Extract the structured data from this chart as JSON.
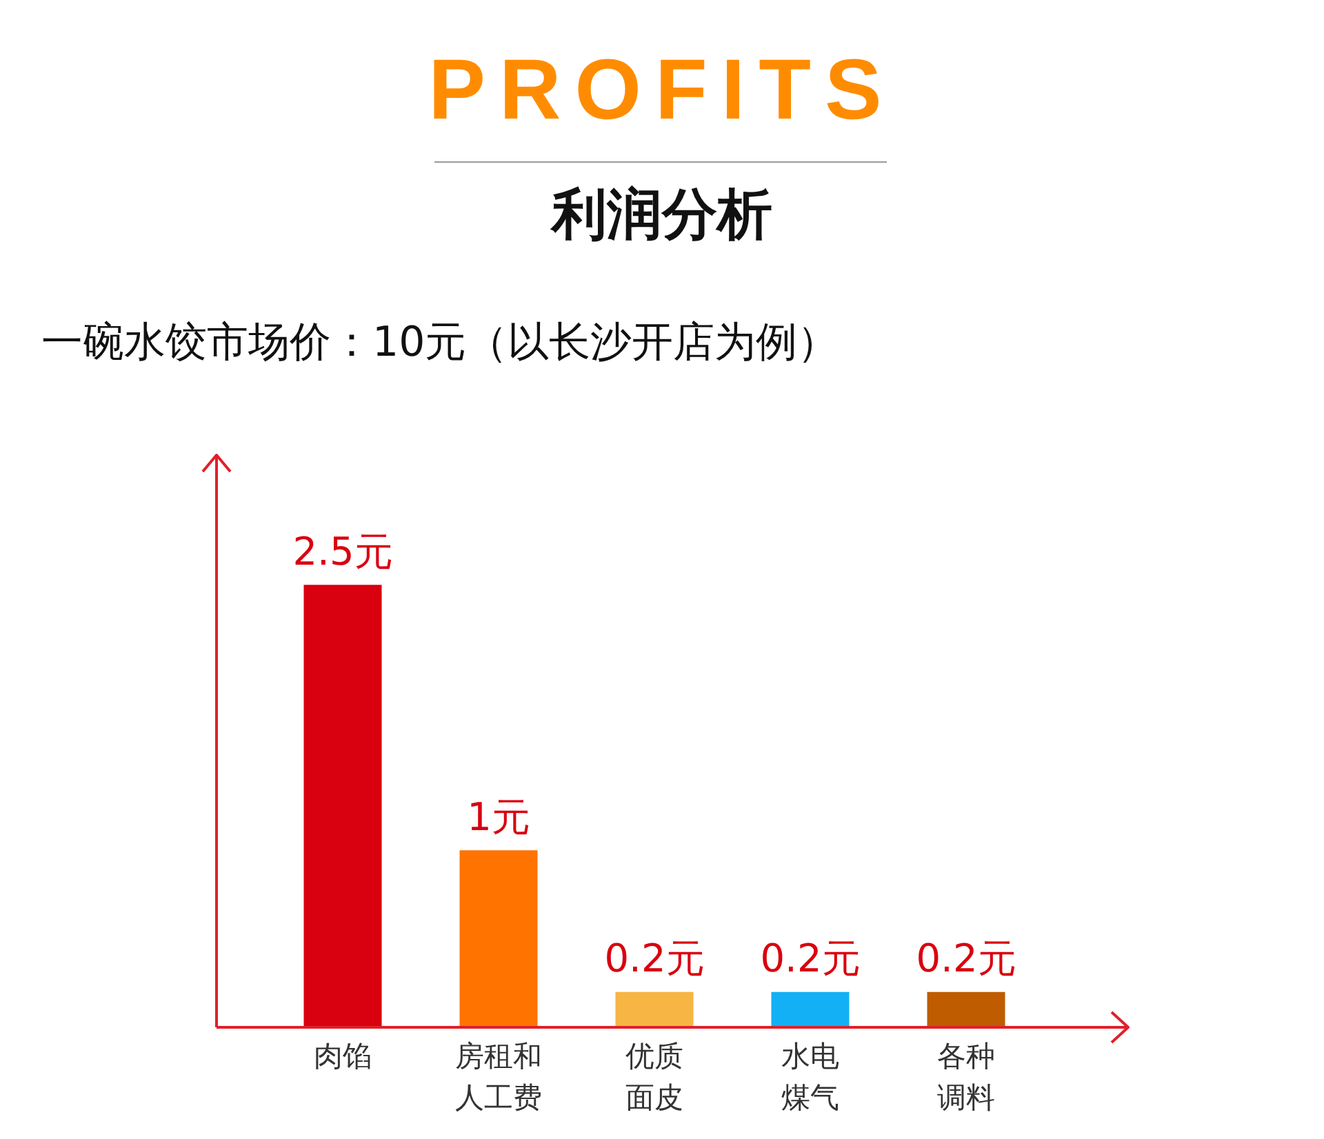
{
  "chart_data": {
    "type": "bar",
    "title": "PROFITS",
    "subtitle": "利润分析",
    "annotations": [
      "一碗水饺市场价：10元（以长沙开店为例）"
    ],
    "categories": [
      "肉馅",
      "房租和人工费",
      "优质面皮",
      "水电煤气",
      "各种调料"
    ],
    "values": [
      2.5,
      1,
      0.2,
      0.2,
      0.2
    ],
    "value_labels": [
      "2.5元",
      "1元",
      "0.2元",
      "0.2元",
      "0.2元"
    ],
    "colors": [
      "#d9000f",
      "#ff7300",
      "#f7b543",
      "#13b0f5",
      "#c05c00"
    ],
    "legend": false
  }
}
